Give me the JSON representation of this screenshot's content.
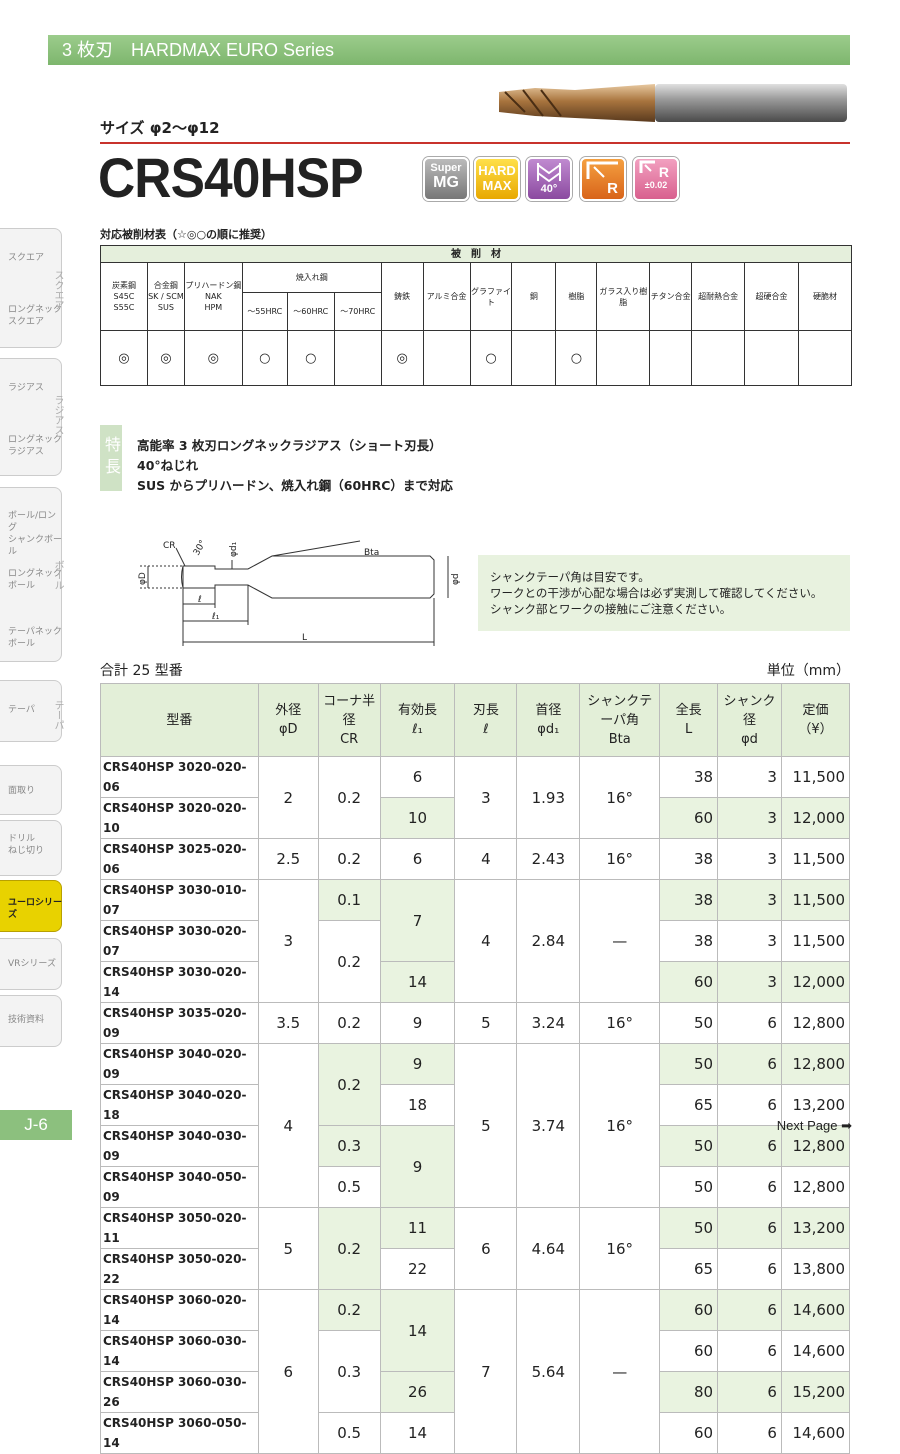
{
  "header": {
    "series": "3 枚刃　HARDMAX EURO Series"
  },
  "size": "サイズ φ2〜φ12",
  "product": "CRS40HSP",
  "badges": [
    {
      "top": "Super",
      "bottom": "MG"
    },
    {
      "top": "HARD",
      "bottom": "MAX"
    },
    {
      "label": "40°"
    },
    {
      "label": "R"
    },
    {
      "label": "R",
      "sub": "±0.02"
    }
  ],
  "sidebar": {
    "items": [
      "スクエア",
      "ロングネック\nスクエア",
      "ラジアス",
      "ロングネック\nラジアス",
      "ボール/ロング\nシャンクボール",
      "ロングネック\nボール",
      "テーパネック\nボール",
      "テーパ",
      "面取り",
      "ドリル\nねじ切り",
      "ユーロシリーズ",
      "VRシリーズ",
      "技術資料"
    ],
    "group_labels": [
      "スクエア",
      "ラジアス",
      "ボール",
      "テーパ"
    ],
    "page": "J-6"
  },
  "materials": {
    "title": "対応被削材表（☆◎○の順に推奨）",
    "group": "被　削　材",
    "hardened_group": "焼入れ鋼",
    "columns": [
      "炭素鋼\nS45C\nS55C",
      "合金鋼\nSK / SCM\nSUS",
      "プリハードン鋼\nNAK\nHPM",
      "〜55HRC",
      "〜60HRC",
      "〜70HRC",
      "鋳鉄",
      "アルミ合金",
      "グラファイト",
      "銅",
      "樹脂",
      "ガラス入り樹脂",
      "チタン合金",
      "超耐熱合金",
      "超硬合金",
      "硬脆材"
    ],
    "marks": [
      "◎",
      "◎",
      "◎",
      "○",
      "○",
      null,
      "◎",
      null,
      "○",
      null,
      "○",
      null,
      null,
      null,
      null,
      null
    ]
  },
  "features": {
    "label": "特長",
    "lines": [
      "高能率 3 枚刃ロングネックラジアス（ショート刃長）",
      "40°ねじれ",
      "SUS からプリハードン、焼入れ鋼（60HRC）まで対応"
    ]
  },
  "diagram": {
    "cr": "CR",
    "angle": "30°",
    "d1": "φd₁",
    "bta": "Bta",
    "D": "φD",
    "d": "φd",
    "l": "ℓ",
    "l1": "ℓ₁",
    "L": "L"
  },
  "note": [
    "シャンクテーパ角は目安です。",
    "ワークとの干渉が心配な場合は必ず実測して確認してください。",
    "シャンク部とワークの接触にご注意ください。"
  ],
  "count": "合計 25 型番",
  "unit": "単位（mm）",
  "table": {
    "headers": [
      "型番",
      "外径\nφD",
      "コーナ半径\nCR",
      "有効長\nℓ₁",
      "刃長\nℓ",
      "首径\nφd₁",
      "シャンクテーパ角\nBta",
      "全長\nL",
      "シャンク径\nφd",
      "定価\n（¥）"
    ],
    "rows": [
      [
        "CRS40HSP 3020-020-06",
        "2",
        "0.2",
        "6",
        "3",
        "1.93",
        "16°",
        "38",
        "3",
        "11,500"
      ],
      [
        "CRS40HSP 3020-020-10",
        null,
        null,
        "10",
        null,
        null,
        null,
        "60",
        "3",
        "12,000"
      ],
      [
        "CRS40HSP 3025-020-06",
        "2.5",
        "0.2",
        "6",
        "4",
        "2.43",
        "16°",
        "38",
        "3",
        "11,500"
      ],
      [
        "CRS40HSP 3030-010-07",
        "3",
        "0.1",
        "7",
        "4",
        "2.84",
        "—",
        "38",
        "3",
        "11,500"
      ],
      [
        "CRS40HSP 3030-020-07",
        null,
        "0.2",
        null,
        null,
        null,
        null,
        "38",
        "3",
        "11,500"
      ],
      [
        "CRS40HSP 3030-020-14",
        null,
        null,
        "14",
        null,
        null,
        null,
        "60",
        "3",
        "12,000"
      ],
      [
        "CRS40HSP 3035-020-09",
        "3.5",
        "0.2",
        "9",
        "5",
        "3.24",
        "16°",
        "50",
        "6",
        "12,800"
      ],
      [
        "CRS40HSP 3040-020-09",
        "4",
        "0.2",
        "9",
        "5",
        "3.74",
        "16°",
        "50",
        "6",
        "12,800"
      ],
      [
        "CRS40HSP 3040-020-18",
        null,
        null,
        "18",
        null,
        null,
        null,
        "65",
        "6",
        "13,200"
      ],
      [
        "CRS40HSP 3040-030-09",
        null,
        "0.3",
        "9",
        null,
        null,
        null,
        "50",
        "6",
        "12,800"
      ],
      [
        "CRS40HSP 3040-050-09",
        null,
        "0.5",
        null,
        null,
        null,
        null,
        "50",
        "6",
        "12,800"
      ],
      [
        "CRS40HSP 3050-020-11",
        "5",
        "0.2",
        "11",
        "6",
        "4.64",
        "16°",
        "50",
        "6",
        "13,200"
      ],
      [
        "CRS40HSP 3050-020-22",
        null,
        null,
        "22",
        null,
        null,
        null,
        "65",
        "6",
        "13,800"
      ],
      [
        "CRS40HSP 3060-020-14",
        "6",
        "0.2",
        "14",
        "7",
        "5.64",
        "—",
        "60",
        "6",
        "14,600"
      ],
      [
        "CRS40HSP 3060-030-14",
        null,
        "0.3",
        null,
        null,
        null,
        null,
        "60",
        "6",
        "14,600"
      ],
      [
        "CRS40HSP 3060-030-26",
        null,
        null,
        "26",
        null,
        null,
        null,
        "80",
        "6",
        "15,200"
      ],
      [
        "CRS40HSP 3060-050-14",
        null,
        "0.5",
        "14",
        null,
        null,
        null,
        "60",
        "6",
        "14,600"
      ]
    ]
  },
  "next": "Next Page ➡"
}
